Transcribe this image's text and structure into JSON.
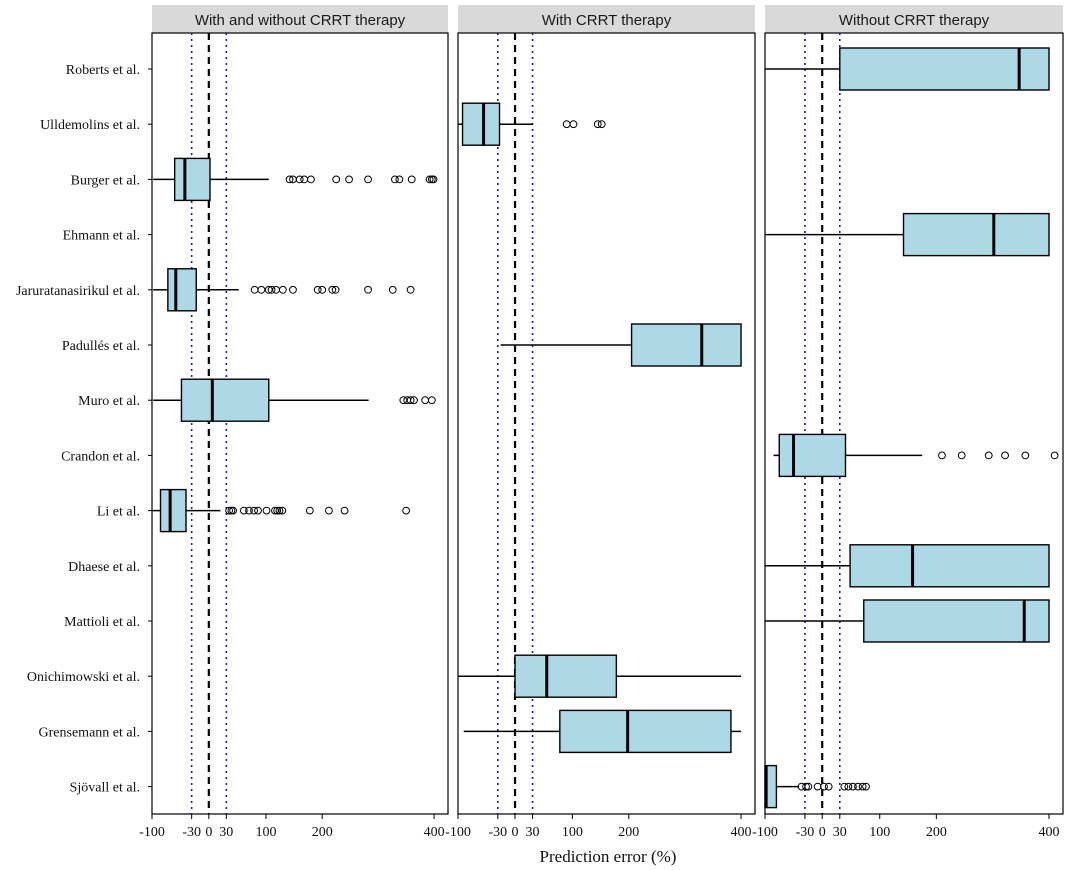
{
  "chart_data": {
    "type": "boxplot",
    "xlabel": "Prediction error (%)",
    "x_ticks": [
      "-100",
      "-30",
      "0",
      "30",
      "100",
      "200",
      "400"
    ],
    "xlim": [
      -100,
      400
    ],
    "reference_lines": {
      "dashed": 0,
      "dotted": [
        -30,
        30
      ],
      "dotted_color": "#1a1aa0",
      "box_fill": "#add8e6"
    },
    "studies": [
      "Roberts et al.",
      "Ulldemolins et al.",
      "Burger et al.",
      "Ehmann et al.",
      "Jaruratanasirikul et al.",
      "Padullés et al.",
      "Muro et al.",
      "Crandon et al.",
      "Li et al.",
      "Dhaese et al.",
      "Mattioli et al.",
      "Onichimowski et al.",
      "Grensemann et al.",
      "Sjövall et al."
    ],
    "panels": [
      {
        "title": "With and without CRRT therapy",
        "boxes": [
          {
            "study": "Burger et al.",
            "whisker_low": -98,
            "q1": -60,
            "median": -42,
            "q3": 2,
            "whisker_high": 105,
            "outliers": [
              142,
              148,
              160,
              168,
              180,
              225,
              248,
              282,
              330,
              338,
              360,
              392,
              396,
              399
            ]
          },
          {
            "study": "Jaruratanasirikul et al.",
            "whisker_low": -98,
            "q1": -72,
            "median": -58,
            "q3": -22,
            "whisker_high": 52,
            "outliers": [
              80,
              92,
              105,
              110,
              118,
              130,
              148,
              192,
              200,
              218,
              224,
              282,
              326,
              358
            ]
          },
          {
            "study": "Muro et al.",
            "whisker_low": -98,
            "q1": -48,
            "median": 6,
            "q3": 105,
            "whisker_high": 283,
            "outliers": [
              345,
              352,
              358,
              364,
              384,
              396
            ]
          },
          {
            "study": "Li et al.",
            "whisker_low": -100,
            "q1": -85,
            "median": -68,
            "q3": -40,
            "whisker_high": 20,
            "outliers": [
              35,
              39,
              42,
              61,
              70,
              79,
              86,
              101,
              116,
              120,
              124,
              129,
              178,
              212,
              240,
              350
            ]
          }
        ]
      },
      {
        "title": "With CRRT therapy",
        "boxes": [
          {
            "study": "Ulldemolins et al.",
            "whisker_low": -100,
            "q1": -92,
            "median": -55,
            "q3": -27,
            "whisker_high": 30,
            "outliers": [
              90,
              102,
              145,
              152
            ]
          },
          {
            "study": "Padullés et al.",
            "whisker_low": -25,
            "q1": 205,
            "median": 330,
            "q3": 400,
            "whisker_high": 400,
            "outliers": []
          },
          {
            "study": "Onichimowski et al.",
            "whisker_low": -100,
            "q1": 0,
            "median": 55,
            "q3": 178,
            "whisker_high": 400,
            "outliers": []
          },
          {
            "study": "Grensemann et al.",
            "whisker_low": -90,
            "q1": 78,
            "median": 198,
            "q3": 382,
            "whisker_high": 400,
            "outliers": []
          }
        ]
      },
      {
        "title": "Without CRRT therapy",
        "boxes": [
          {
            "study": "Roberts et al.",
            "whisker_low": -100,
            "q1": 30,
            "median": 347,
            "q3": 400,
            "whisker_high": 400,
            "outliers": []
          },
          {
            "study": "Ehmann et al.",
            "whisker_low": -100,
            "q1": 142,
            "median": 302,
            "q3": 400,
            "whisker_high": 400,
            "outliers": []
          },
          {
            "study": "Crandon et al.",
            "whisker_low": -85,
            "q1": -75,
            "median": -50,
            "q3": 40,
            "whisker_high": 175,
            "outliers": [
              210,
              245,
              293,
              322,
              358,
              410
            ]
          },
          {
            "study": "Dhaese et al.",
            "whisker_low": -100,
            "q1": 48,
            "median": 158,
            "q3": 400,
            "whisker_high": 400,
            "outliers": []
          },
          {
            "study": "Mattioli et al.",
            "whisker_low": -100,
            "q1": 72,
            "median": 356,
            "q3": 400,
            "whisker_high": 400,
            "outliers": []
          },
          {
            "study": "Sjövall et al.",
            "whisker_low": -100,
            "q1": -100,
            "median": -98,
            "q3": -80,
            "whisker_high": -40,
            "outliers": [
              -36,
              -28,
              -24,
              -8,
              3,
              11,
              38,
              45,
              53,
              62,
              70,
              76
            ]
          }
        ]
      }
    ]
  }
}
